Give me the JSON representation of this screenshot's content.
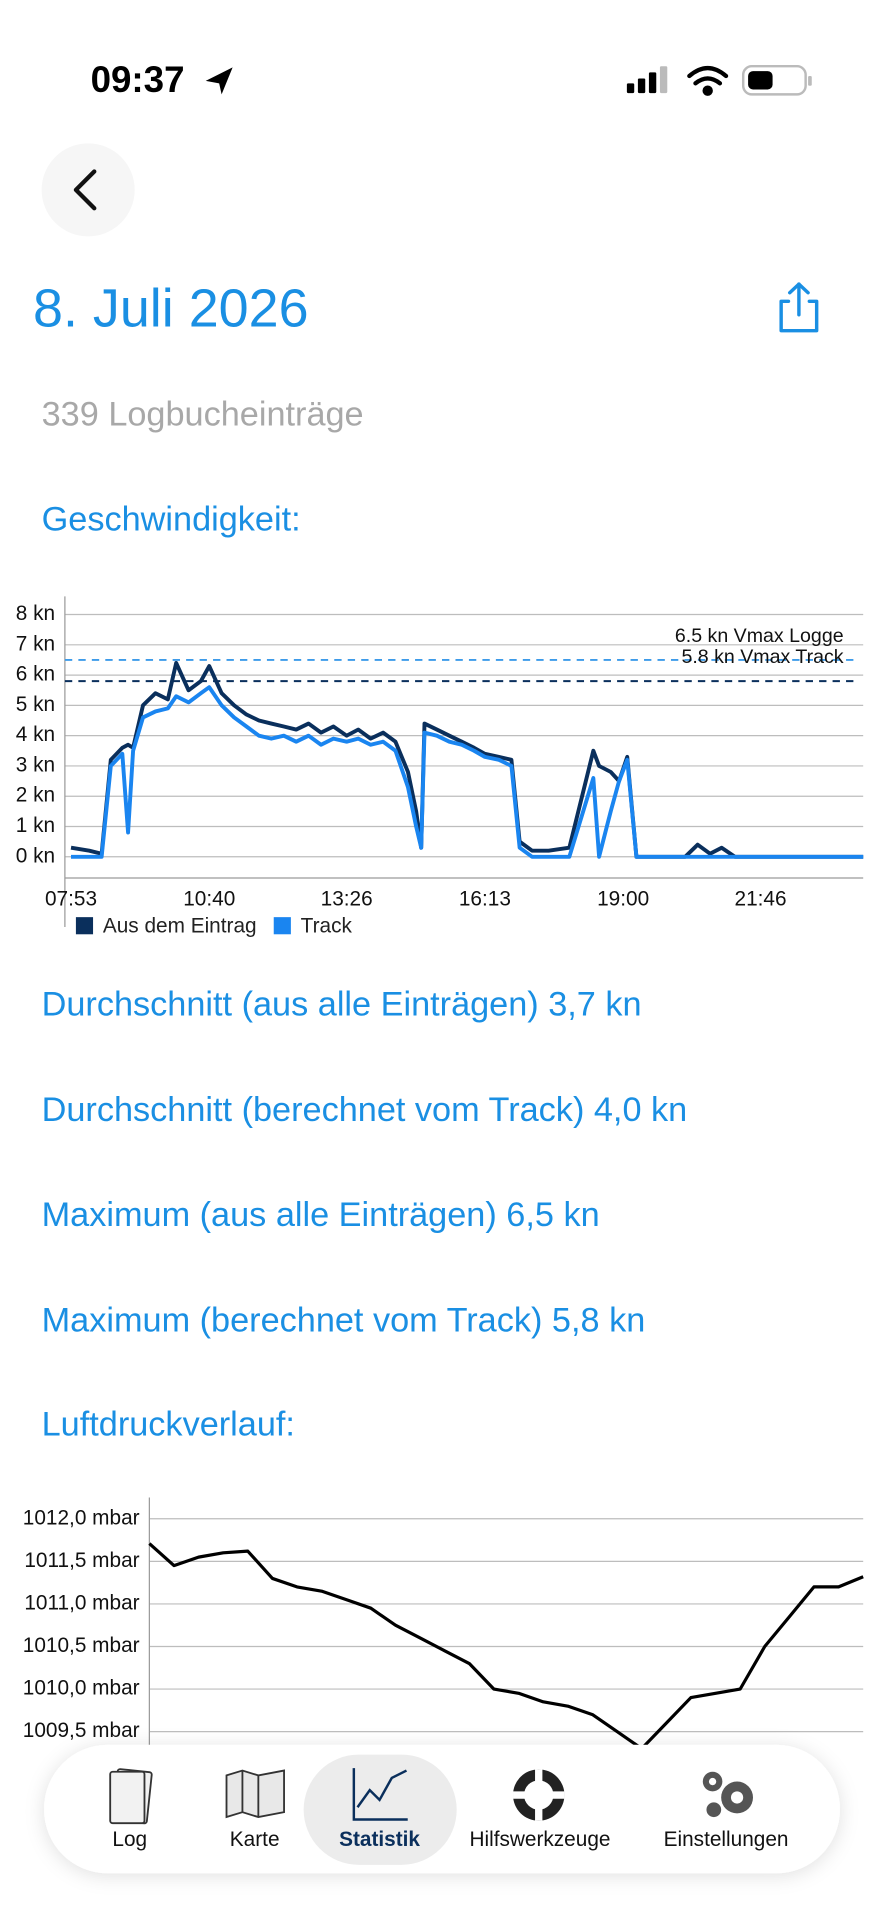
{
  "status_bar": {
    "time": "09:37"
  },
  "header": {
    "title": "8. Juli 2026",
    "subtitle": "339 Logbucheinträge"
  },
  "stats": [
    "Durchschnitt (aus alle Einträgen) 3,7 kn",
    "Durchschnitt (berechnet vom Track) 4,0 kn",
    "Maximum (aus alle Einträgen) 6,5 kn",
    "Maximum (berechnet vom Track) 5,8 kn"
  ],
  "tab_bar": {
    "items": [
      "Log",
      "Karte",
      "Statistik",
      "Hilfswerkzeuge",
      "Einstellungen"
    ],
    "selected": 2
  },
  "chart_data": [
    {
      "type": "line",
      "title": "Geschwindigkeit:",
      "x": [
        "07:53",
        "08:15",
        "08:30",
        "08:41",
        "08:55",
        "09:02",
        "09:08",
        "09:20",
        "09:35",
        "09:50",
        "10:00",
        "10:15",
        "10:30",
        "10:40",
        "10:55",
        "11:10",
        "11:25",
        "11:40",
        "11:55",
        "12:10",
        "12:25",
        "12:40",
        "12:55",
        "13:10",
        "13:26",
        "13:40",
        "13:55",
        "14:10",
        "14:25",
        "14:40",
        "14:50",
        "14:56",
        "15:00",
        "15:15",
        "15:30",
        "15:45",
        "16:00",
        "16:13",
        "16:30",
        "16:45",
        "16:55",
        "17:10",
        "17:30",
        "17:55",
        "18:24",
        "18:31",
        "18:45",
        "18:55",
        "19:05",
        "19:16",
        "19:40",
        "20:15",
        "20:30",
        "20:45",
        "20:59",
        "21:15",
        "22:00",
        "23:00",
        "23:50"
      ],
      "series": [
        {
          "name": "Aus dem Eintrag",
          "color": "#0a2f5c",
          "values": [
            0.3,
            0.2,
            0.1,
            3.2,
            3.6,
            3.7,
            3.6,
            5.0,
            5.4,
            5.2,
            6.4,
            5.5,
            5.8,
            6.3,
            5.4,
            5.0,
            4.7,
            4.5,
            4.4,
            4.3,
            4.2,
            4.4,
            4.1,
            4.3,
            4.0,
            4.2,
            3.9,
            4.1,
            3.8,
            2.8,
            1.5,
            0.3,
            4.4,
            4.2,
            4.0,
            3.8,
            3.6,
            3.4,
            3.3,
            3.2,
            0.5,
            0.2,
            0.2,
            0.3,
            3.5,
            3.0,
            2.8,
            2.5,
            3.3,
            0.0,
            0.0,
            0.0,
            0.4,
            0.1,
            0.3,
            0.0,
            0.0,
            0.0,
            0.0
          ]
        },
        {
          "name": "Track",
          "color": "#1a85f0",
          "values": [
            0.0,
            0.0,
            0.0,
            3.0,
            3.4,
            0.8,
            3.5,
            4.6,
            4.8,
            4.9,
            5.3,
            5.1,
            5.4,
            5.6,
            5.0,
            4.6,
            4.3,
            4.0,
            3.9,
            4.0,
            3.8,
            4.0,
            3.7,
            3.9,
            3.8,
            3.9,
            3.7,
            3.8,
            3.5,
            2.3,
            1.0,
            0.3,
            4.1,
            4.0,
            3.8,
            3.7,
            3.5,
            3.3,
            3.2,
            3.0,
            0.3,
            0.0,
            0.0,
            0.0,
            2.6,
            0.0,
            1.5,
            2.5,
            3.2,
            0.0,
            0.0,
            0.0,
            0.0,
            0.0,
            0.0,
            0.0,
            0.0,
            0.0,
            0.0
          ]
        }
      ],
      "xlim": [
        "07:53",
        "23:50"
      ],
      "xticks": [
        "07:53",
        "10:40",
        "13:26",
        "16:13",
        "19:00",
        "21:46"
      ],
      "ylim": [
        -0.7,
        8.6
      ],
      "yticks": [
        {
          "value": 0,
          "label": "0 kn"
        },
        {
          "value": 1,
          "label": "1 kn"
        },
        {
          "value": 2,
          "label": "2 kn"
        },
        {
          "value": 3,
          "label": "3 kn"
        },
        {
          "value": 4,
          "label": "4 kn"
        },
        {
          "value": 5,
          "label": "5 kn"
        },
        {
          "value": 6,
          "label": "6 kn"
        },
        {
          "value": 7,
          "label": "7 kn"
        },
        {
          "value": 8,
          "label": "8 kn"
        }
      ],
      "grid": true,
      "annotations": [
        {
          "value": 6.5,
          "label": "6.5 kn Vmax Logge",
          "color": "#3d9be9"
        },
        {
          "value": 5.8,
          "label": "5.8 kn Vmax Track",
          "color": "#0a2f5c"
        }
      ],
      "legend": "bottom-left"
    },
    {
      "type": "line",
      "title": "Luftdruckverlauf:",
      "color": "#000000",
      "values": [
        1011.71,
        1011.45,
        1011.55,
        1011.6,
        1011.62,
        1011.3,
        1011.2,
        1011.15,
        1011.05,
        1010.95,
        1010.75,
        1010.6,
        1010.45,
        1010.3,
        1010.0,
        1009.95,
        1009.85,
        1009.8,
        1009.7,
        1009.5,
        1009.3,
        1009.6,
        1009.9,
        1009.95,
        1010.0,
        1010.5,
        1010.85,
        1011.2,
        1011.2,
        1011.32
      ],
      "ylim": [
        1009.0,
        1012.25
      ],
      "yticks": [
        {
          "value": 1009.5,
          "label": "1009,5 mbar"
        },
        {
          "value": 1010.0,
          "label": "1010,0 mbar"
        },
        {
          "value": 1010.5,
          "label": "1010,5 mbar"
        },
        {
          "value": 1011.0,
          "label": "1011,0 mbar"
        },
        {
          "value": 1011.5,
          "label": "1011,5 mbar"
        },
        {
          "value": 1012.0,
          "label": "1012,0 mbar"
        }
      ],
      "grid": true
    }
  ]
}
